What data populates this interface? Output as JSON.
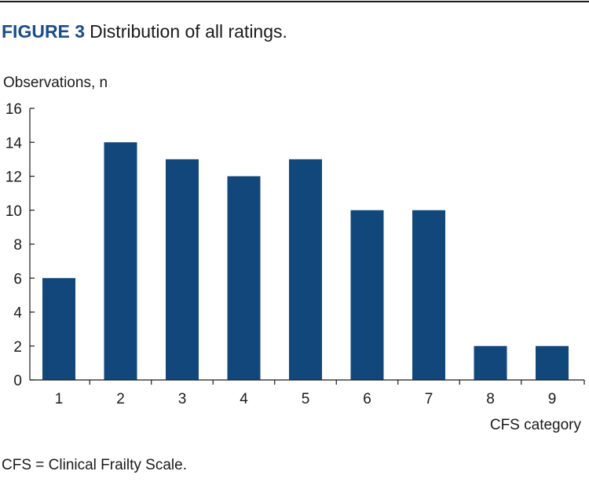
{
  "figure": {
    "label": "FIGURE 3",
    "caption": "Distribution of all ratings."
  },
  "footnote": "CFS = Clinical Frailty Scale.",
  "colors": {
    "bar": "#12477c",
    "label": "#1a4d8c",
    "axis": "#1a1a1a"
  },
  "chart_data": {
    "type": "bar",
    "title": "Distribution of all ratings.",
    "xlabel": "CFS category",
    "ylabel": "Observations, n",
    "categories": [
      "1",
      "2",
      "3",
      "4",
      "5",
      "6",
      "7",
      "8",
      "9"
    ],
    "values": [
      6,
      14,
      13,
      12,
      13,
      10,
      10,
      2,
      2
    ],
    "ylim": [
      0,
      16
    ],
    "yticks": [
      0,
      2,
      4,
      6,
      8,
      10,
      12,
      14,
      16
    ],
    "grid": false,
    "legend": "none"
  }
}
